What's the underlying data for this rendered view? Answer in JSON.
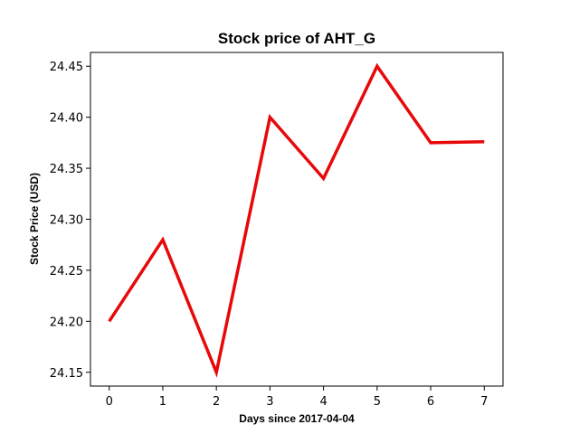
{
  "chart_data": {
    "type": "line",
    "title": "Stock price of AHT_G",
    "xlabel": "Days since 2017-04-04",
    "ylabel": "Stock Price (USD)",
    "x": [
      0,
      1,
      2,
      3,
      4,
      5,
      6,
      7
    ],
    "series": [
      {
        "values": [
          24.2,
          24.28,
          24.15,
          24.4,
          24.34,
          24.45,
          24.375,
          24.376
        ],
        "color": "#e8080a"
      }
    ],
    "xticks": [
      "0",
      "1",
      "2",
      "3",
      "4",
      "5",
      "6",
      "7"
    ],
    "yticks": [
      "24.15",
      "24.20",
      "24.25",
      "24.30",
      "24.35",
      "24.40",
      "24.45"
    ],
    "xlim": [
      -0.35,
      7.35
    ],
    "ylim": [
      24.1365,
      24.4635
    ],
    "grid": false
  }
}
